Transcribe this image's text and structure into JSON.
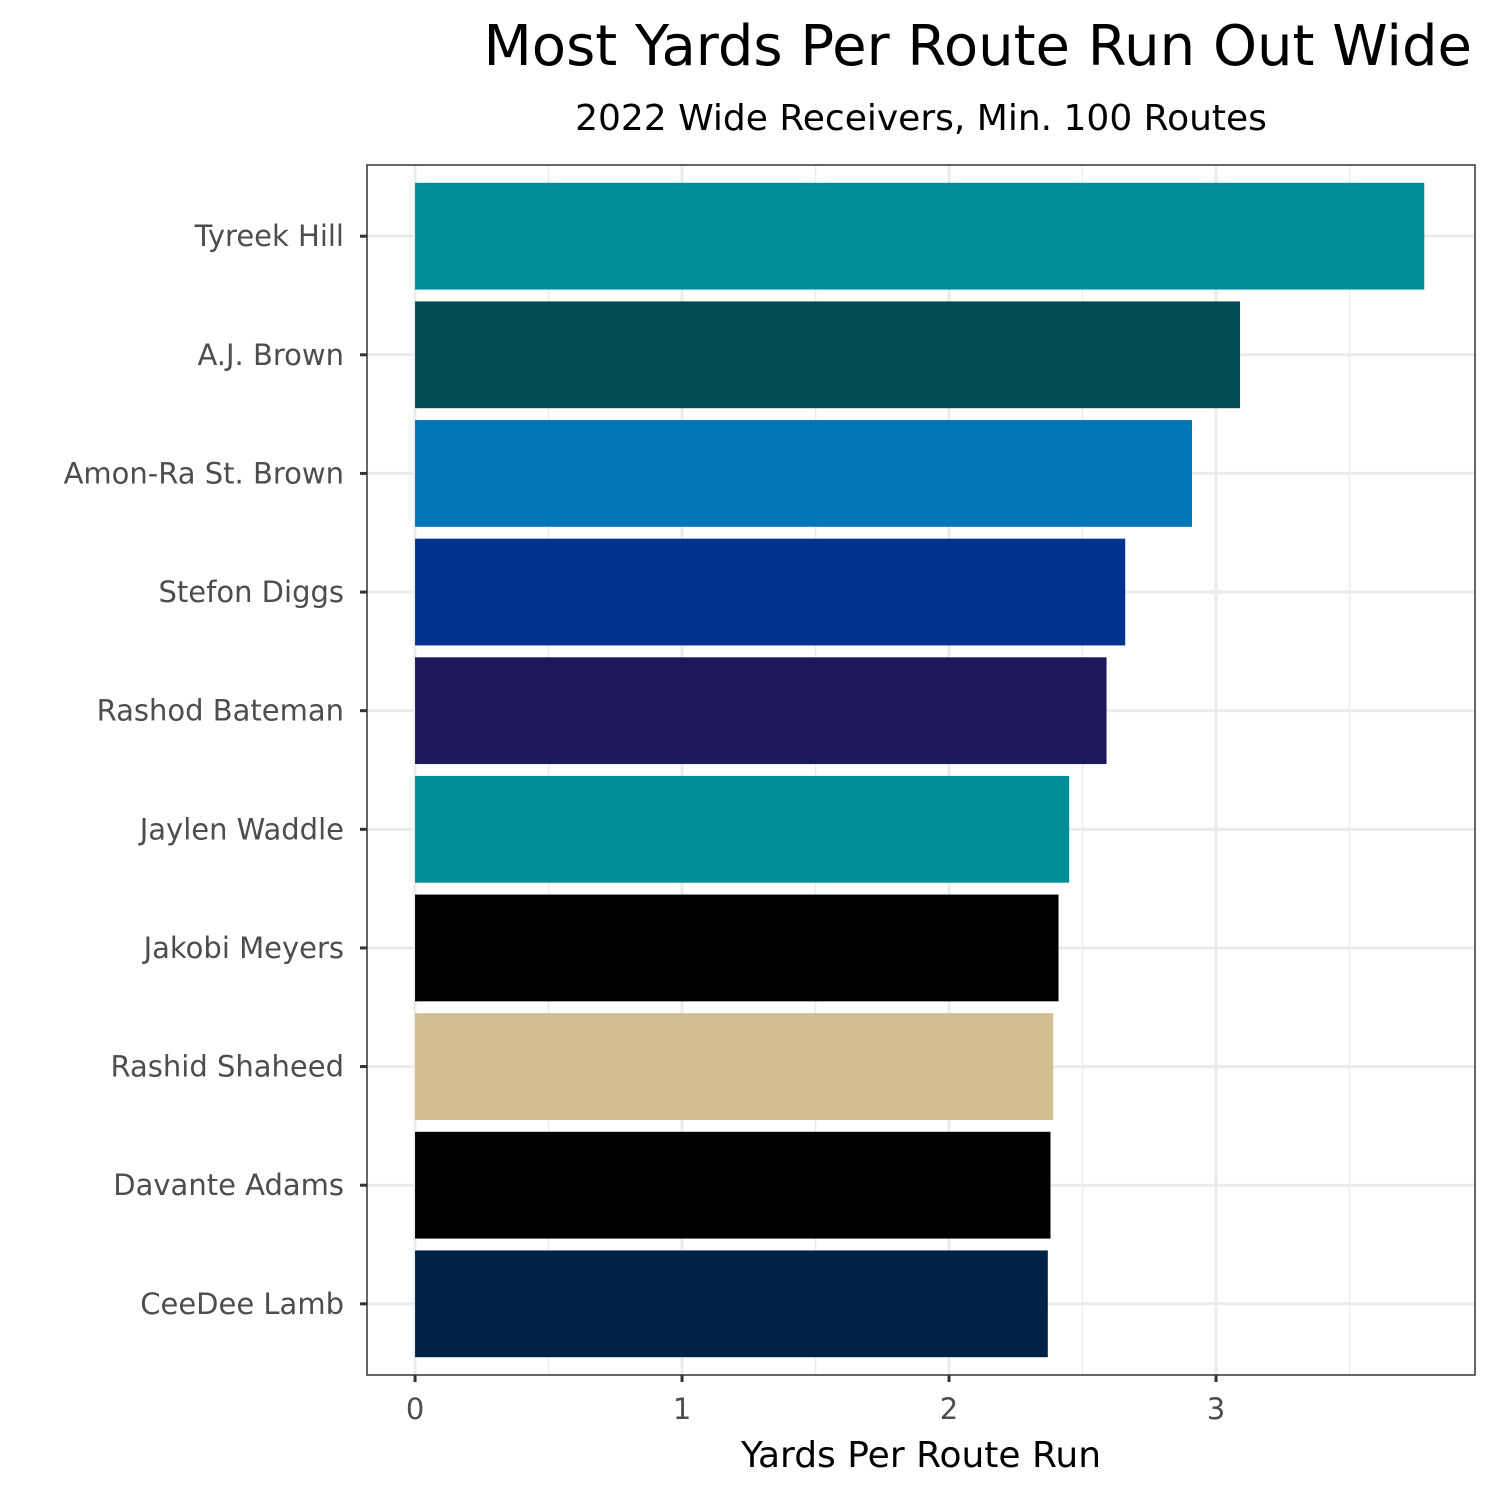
{
  "chart_data": {
    "type": "bar",
    "orientation": "horizontal",
    "title": "Most Yards Per Route Run Out Wide",
    "subtitle": "2022 Wide Receivers, Min. 100 Routes",
    "xlabel": "Yards  Per  Route  Run",
    "ylabel": "",
    "xlim": [
      -0.18,
      3.97
    ],
    "x_ticks": [
      0,
      1,
      2,
      3
    ],
    "grid": true,
    "categories": [
      "Tyreek Hill",
      "A.J. Brown",
      "Amon-Ra St. Brown",
      "Stefon Diggs",
      "Rashod Bateman",
      "Jaylen Waddle",
      "Jakobi Meyers",
      "Rashid Shaheed",
      "Davante Adams",
      "CeeDee Lamb"
    ],
    "values": [
      3.78,
      3.09,
      2.91,
      2.66,
      2.59,
      2.45,
      2.41,
      2.39,
      2.38,
      2.37
    ],
    "colors": [
      "#008E97",
      "#004C54",
      "#0076B6",
      "#00338D",
      "#1D175D",
      "#008E97",
      "#000000",
      "#D3BC8D",
      "#000000",
      "#002244"
    ]
  }
}
